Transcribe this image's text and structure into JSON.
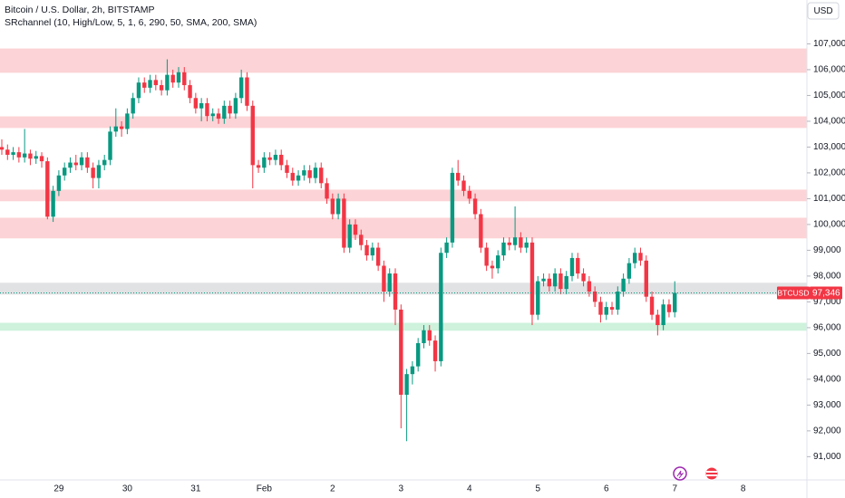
{
  "chart_data": {
    "type": "candlestick",
    "title": "Bitcoin / U.S. Dollar, 2h, BITSTAMP",
    "indicator": "SRchannel (10, High/Low, 5, 1, 6, 290, 50, SMA, 200, SMA)",
    "currency": "USD",
    "up_color": "#089981",
    "down_color": "#f23645",
    "grid": false,
    "ylim": [
      90100,
      108700
    ],
    "yticks": [
      {
        "value": 91000,
        "label": "91,000"
      },
      {
        "value": 92000,
        "label": "92,000"
      },
      {
        "value": 93000,
        "label": "93,000"
      },
      {
        "value": 94000,
        "label": "94,000"
      },
      {
        "value": 95000,
        "label": "95,000"
      },
      {
        "value": 96000,
        "label": "96,000"
      },
      {
        "value": 97000,
        "label": "97,000"
      },
      {
        "value": 98000,
        "label": "98,000"
      },
      {
        "value": 99000,
        "label": "99,000"
      },
      {
        "value": 100000,
        "label": "100,000"
      },
      {
        "value": 101000,
        "label": "101,000"
      },
      {
        "value": 102000,
        "label": "102,000"
      },
      {
        "value": 103000,
        "label": "103,000"
      },
      {
        "value": 104000,
        "label": "104,000"
      },
      {
        "value": 105000,
        "label": "105,000"
      },
      {
        "value": 106000,
        "label": "106,000"
      },
      {
        "value": 107000,
        "label": "107,000"
      }
    ],
    "bands": [
      {
        "low": 105880,
        "high": 106820,
        "color": "#f23645"
      },
      {
        "low": 103740,
        "high": 104190,
        "color": "#f23645"
      },
      {
        "low": 100900,
        "high": 101350,
        "color": "#f23645"
      },
      {
        "low": 99460,
        "high": 100260,
        "color": "#f23645"
      },
      {
        "low": 97280,
        "high": 97740,
        "color": "#787b86"
      },
      {
        "low": 95880,
        "high": 96190,
        "color": "#22c55e"
      }
    ],
    "price_tag": {
      "symbol": "BTCUSD",
      "label": "97,346"
    },
    "categories": [
      null,
      null,
      null,
      null,
      null,
      null,
      null,
      null,
      null,
      null,
      "29",
      null,
      null,
      null,
      null,
      null,
      null,
      null,
      null,
      null,
      null,
      null,
      "30",
      null,
      null,
      null,
      null,
      null,
      null,
      null,
      null,
      null,
      null,
      null,
      "31",
      null,
      null,
      null,
      null,
      null,
      null,
      null,
      null,
      null,
      null,
      null,
      "Feb",
      null,
      null,
      null,
      null,
      null,
      null,
      null,
      null,
      null,
      null,
      null,
      "2",
      null,
      null,
      null,
      null,
      null,
      null,
      null,
      null,
      null,
      null,
      null,
      "3",
      null,
      null,
      null,
      null,
      null,
      null,
      null,
      null,
      null,
      null,
      null,
      "4",
      null,
      null,
      null,
      null,
      null,
      null,
      null,
      null,
      null,
      null,
      null,
      "5",
      null,
      null,
      null,
      null,
      null,
      null,
      null,
      null,
      null,
      null,
      null,
      "6",
      null,
      null,
      null,
      null,
      null,
      null,
      null,
      null,
      null,
      null,
      null,
      "7",
      null,
      null,
      null,
      null,
      null,
      null,
      null,
      null,
      null,
      null,
      null,
      "8"
    ],
    "open": [
      103000,
      102900,
      102700,
      102800,
      102600,
      102750,
      102550,
      102650,
      102450,
      100300,
      101300,
      101900,
      102200,
      102400,
      102300,
      102600,
      102200,
      101800,
      102300,
      102500,
      103600,
      103800,
      103700,
      104300,
      104900,
      105500,
      105300,
      105600,
      105400,
      105200,
      105800,
      105500,
      105900,
      105400,
      104900,
      104500,
      104700,
      104200,
      104300,
      104100,
      104600,
      104300,
      104900,
      105700,
      104600,
      102300,
      102200,
      102600,
      102500,
      102700,
      102300,
      102000,
      101700,
      101900,
      102100,
      101800,
      102200,
      101600,
      101000,
      100400,
      101000,
      99100,
      100000,
      99600,
      99200,
      98800,
      99100,
      98400,
      97400,
      98100,
      96700,
      93400,
      94200,
      94500,
      95400,
      95900,
      95500,
      94700,
      98900,
      99300,
      102000,
      101700,
      101300,
      101000,
      100400,
      99100,
      98400,
      98300,
      98800,
      99300,
      99200,
      99500,
      99100,
      99300,
      96500,
      97800,
      97900,
      97600,
      98100,
      97500,
      98000,
      98700,
      98100,
      97800,
      97400,
      97000,
      96500,
      96800,
      96700,
      97400,
      97900,
      98500,
      98900,
      98600,
      97200,
      96500,
      96100,
      96900,
      96600,
      null,
      null,
      null,
      null,
      null,
      null,
      null,
      null,
      null,
      null,
      null,
      null
    ],
    "high": [
      103300,
      103100,
      103000,
      103000,
      103700,
      102900,
      102850,
      102800,
      102600,
      101500,
      102100,
      102400,
      102600,
      102700,
      102800,
      102800,
      102400,
      102500,
      102700,
      103800,
      104500,
      104000,
      104500,
      105100,
      105700,
      105700,
      105800,
      105800,
      105600,
      106400,
      106000,
      106100,
      106100,
      105600,
      105100,
      104900,
      104900,
      104500,
      104500,
      104800,
      104800,
      105100,
      106000,
      105900,
      104800,
      102500,
      102800,
      102800,
      102900,
      102900,
      102500,
      102200,
      102100,
      102300,
      102300,
      102400,
      102400,
      101800,
      101200,
      101200,
      101200,
      100200,
      100200,
      99800,
      99400,
      99300,
      99300,
      98600,
      98300,
      98300,
      96900,
      94400,
      94700,
      95600,
      96100,
      96100,
      95700,
      99100,
      99500,
      102200,
      102500,
      101900,
      101500,
      101200,
      100600,
      99300,
      98600,
      99000,
      99500,
      99500,
      100700,
      99700,
      99500,
      99500,
      98000,
      98100,
      98100,
      98300,
      98300,
      98200,
      98900,
      98900,
      98300,
      98000,
      97600,
      97200,
      97000,
      97000,
      97600,
      98100,
      98700,
      99100,
      99100,
      98800,
      97400,
      96700,
      97100,
      97100,
      97800,
      null,
      null,
      null,
      null,
      null,
      null,
      null,
      null,
      null,
      null,
      null,
      null
    ],
    "low": [
      102700,
      102500,
      102500,
      102400,
      102400,
      102300,
      102350,
      102200,
      100200,
      100100,
      101100,
      101700,
      102000,
      102100,
      102100,
      102000,
      101400,
      101400,
      102100,
      102300,
      103400,
      103400,
      103500,
      104100,
      104700,
      105100,
      105100,
      105200,
      105000,
      105000,
      105300,
      105300,
      105200,
      104700,
      104300,
      104000,
      104000,
      104000,
      103900,
      103900,
      104100,
      104100,
      104700,
      104400,
      101400,
      102000,
      102000,
      102300,
      102300,
      102100,
      101800,
      101500,
      101500,
      101700,
      101600,
      101600,
      101400,
      100800,
      100200,
      100200,
      98900,
      98900,
      99400,
      99000,
      98600,
      98600,
      98200,
      97000,
      97200,
      96100,
      92100,
      91600,
      93800,
      94300,
      95200,
      95300,
      94300,
      94500,
      98700,
      99100,
      101500,
      101100,
      100800,
      100200,
      98900,
      98200,
      97900,
      98100,
      98600,
      99000,
      99000,
      98900,
      98900,
      96100,
      96300,
      97600,
      97400,
      97400,
      97300,
      97300,
      97800,
      97900,
      97600,
      97200,
      96800,
      96200,
      96300,
      96500,
      96500,
      97200,
      97700,
      98300,
      98400,
      97000,
      96300,
      95700,
      95900,
      96400,
      96400,
      null,
      null,
      null,
      null,
      null,
      null,
      null,
      null,
      null,
      null,
      null,
      null
    ],
    "close": [
      102900,
      102700,
      102800,
      102600,
      102750,
      102550,
      102650,
      102450,
      100300,
      101300,
      101900,
      102200,
      102400,
      102300,
      102600,
      102200,
      101800,
      102300,
      102500,
      103600,
      103800,
      103700,
      104300,
      104900,
      105500,
      105300,
      105600,
      105400,
      105200,
      105800,
      105500,
      105900,
      105400,
      104900,
      104500,
      104700,
      104200,
      104300,
      104100,
      104600,
      104300,
      104900,
      105700,
      104600,
      102300,
      102200,
      102600,
      102500,
      102700,
      102300,
      102000,
      101700,
      101900,
      102100,
      101800,
      102200,
      101600,
      101000,
      100400,
      101000,
      99100,
      100000,
      99600,
      99200,
      98800,
      99100,
      98400,
      97400,
      98100,
      96700,
      93400,
      94200,
      94500,
      95400,
      95900,
      95500,
      94700,
      98900,
      99300,
      102000,
      101700,
      101300,
      101000,
      100400,
      99100,
      98400,
      98300,
      98800,
      99300,
      99200,
      99500,
      99100,
      99300,
      96500,
      97800,
      97900,
      97600,
      98100,
      97500,
      98000,
      98700,
      98100,
      97800,
      97400,
      97000,
      96500,
      96800,
      96700,
      97400,
      97900,
      98500,
      98900,
      98600,
      97200,
      96500,
      96100,
      96900,
      96600,
      97346,
      null,
      null,
      null,
      null,
      null,
      null,
      null,
      null,
      null,
      null,
      null,
      null
    ]
  }
}
